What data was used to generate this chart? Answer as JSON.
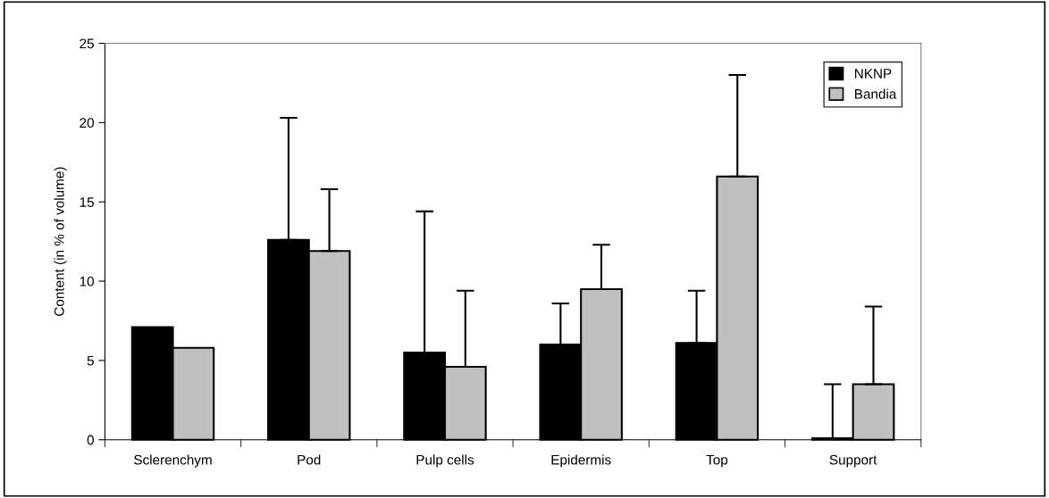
{
  "chart_data": {
    "type": "bar",
    "ylabel": "Content (in % of volume)",
    "categories": [
      "Sclerenchym",
      "Pod",
      "Pulp cells",
      "Epidermis",
      "Top",
      "Support"
    ],
    "series": [
      {
        "name": "NKNP",
        "color": "#000000",
        "values": [
          7.1,
          12.6,
          5.5,
          6.0,
          6.1,
          0.1
        ],
        "errors": [
          null,
          [
            12.6,
            20.3
          ],
          [
            5.5,
            14.4
          ],
          [
            6.0,
            8.6
          ],
          [
            6.1,
            9.4
          ],
          [
            0.1,
            3.5
          ]
        ]
      },
      {
        "name": "Bandia",
        "color": "#c0c0c0",
        "values": [
          5.8,
          11.9,
          4.6,
          9.5,
          16.6,
          3.5
        ],
        "errors": [
          null,
          [
            11.9,
            15.8
          ],
          [
            4.6,
            9.4
          ],
          [
            9.5,
            12.3
          ],
          [
            16.6,
            23.0
          ],
          [
            3.5,
            8.4
          ]
        ]
      }
    ],
    "ylim": [
      0,
      25
    ],
    "yticks": [
      0,
      5,
      10,
      15,
      20,
      25
    ],
    "grid": false,
    "legend": "top right"
  }
}
